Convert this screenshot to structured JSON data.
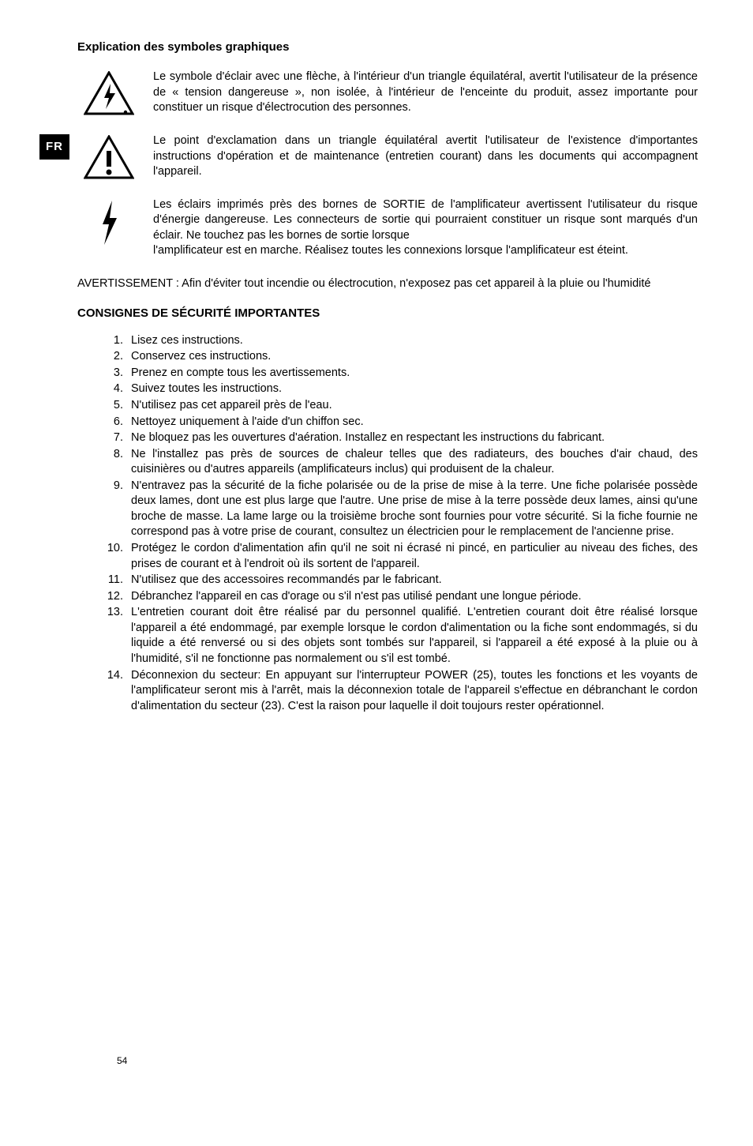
{
  "lang_tab": "FR",
  "page_number": "54",
  "heading_symbols": "Explication des symboles graphiques",
  "symbol_lightning_triangle": "Le symbole d'éclair avec une flèche, à l'intérieur d'un triangle équilatéral, avertit l'utilisateur de la présence de « tension dangereuse », non isolée, à l'intérieur de l'enceinte du produit, assez importante pour constituer un risque d'électrocution des personnes.",
  "symbol_exclamation_triangle": "Le point d'exclamation dans un triangle équilatéral avertit l'utilisateur de l'existence d'importantes instructions d'opération et de maintenance (entretien courant) dans les documents qui accompagnent l'appareil.",
  "symbol_bolt_para1": "Les éclairs imprimés près des bornes de SORTIE de l'amplificateur avertissent l'utilisateur du risque d'énergie dangereuse. Les connecteurs de sortie qui pourraient constituer un risque sont marqués d'un éclair. Ne touchez pas les bornes de sortie lorsque",
  "symbol_bolt_para2": "l'amplificateur est en marche. Réalisez toutes les connexions lorsque l'amplificateur est éteint.",
  "warning_line": "AVERTISSEMENT : Afin d'éviter tout incendie ou électrocution, n'exposez pas cet appareil à la pluie ou l'humidité",
  "heading_safety": "CONSIGNES DE SÉCURITÉ IMPORTANTES",
  "safety_items": [
    "Lisez ces instructions.",
    "Conservez ces instructions.",
    "Prenez en compte tous les avertissements.",
    "Suivez toutes les instructions.",
    "N'utilisez pas cet appareil près de l'eau.",
    "Nettoyez uniquement à l'aide d'un chiffon sec.",
    "Ne bloquez pas les ouvertures d'aération. Installez en respectant les instructions du fabricant.",
    "Ne l'installez pas près de sources de chaleur telles que des radiateurs, des bouches d'air chaud, des cuisinières ou d'autres appareils (amplificateurs inclus) qui produisent de la chaleur.",
    "N'entravez pas la sécurité de la fiche polarisée ou de la prise de mise à la terre. Une fiche polarisée possède deux lames, dont une est plus large que l'autre. Une prise de mise à la terre possède deux lames, ainsi qu'une broche de masse. La lame large ou la troisième broche sont fournies pour votre sécurité. Si la fiche fournie ne correspond pas à votre prise de courant, consultez un électricien pour le remplacement de l'ancienne prise.",
    "Protégez le cordon d'alimentation afin qu'il ne soit ni écrasé ni pincé, en particulier au niveau des fiches, des prises de courant et à l'endroit où ils sortent de l'appareil.",
    "N'utilisez que des accessoires recommandés par le fabricant.",
    "Débranchez l'appareil en cas d'orage ou s'il n'est pas utilisé pendant une longue période.",
    "L'entretien courant doit être réalisé par du personnel qualifié. L'entretien courant doit être réalisé lorsque l'appareil a été endommagé, par exemple lorsque le cordon d'alimentation ou la fiche sont endommagés, si du liquide a été renversé ou si des objets sont tombés sur l'appareil, si l'appareil a été exposé à la pluie ou à l'humidité, s'il ne fonctionne pas normalement ou s'il est tombé.",
    "Déconnexion du secteur: En appuyant sur l'interrupteur POWER (25), toutes les fonctions et les voyants de l'amplificateur seront mis à l'arrêt, mais la déconnexion totale de l'appareil s'effectue en débranchant le cordon d'alimentation du secteur (23). C'est la raison pour laquelle il doit toujours rester opérationnel."
  ],
  "icons": {
    "lightning_triangle_stroke": "#000000",
    "exclamation_triangle_stroke": "#000000",
    "bolt_stroke": "#000000"
  }
}
